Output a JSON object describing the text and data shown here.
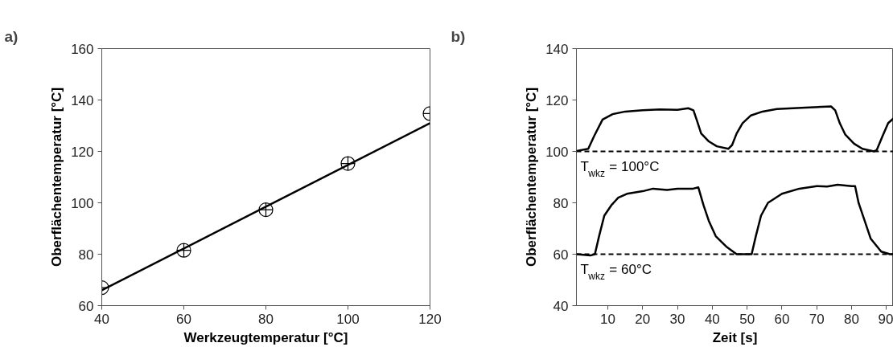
{
  "chart_data": [
    {
      "type": "scatter",
      "title": "a)",
      "xlabel": "Werkzeugtemperatur [°C]",
      "ylabel": "Oberflächentemperatur [°C]",
      "xlim": [
        40,
        120
      ],
      "xticks": [
        40,
        60,
        80,
        100,
        120
      ],
      "ylim": [
        60,
        160
      ],
      "yticks": [
        60,
        80,
        100,
        120,
        140,
        160
      ],
      "grid": false,
      "series": [
        {
          "type": "scatter",
          "marker": "circle",
          "color": "#000000",
          "x": [
            40,
            60,
            80,
            100,
            120
          ],
          "values": [
            67,
            81.5,
            97.3,
            115.3,
            134.7
          ]
        },
        {
          "type": "line",
          "marker": "none",
          "color": "#000000",
          "x": [
            40,
            120
          ],
          "values": [
            66,
            131
          ]
        }
      ]
    },
    {
      "type": "line",
      "title": "b)",
      "xlabel": "Zeit [s]",
      "ylabel": "Oberflächentemperatur [°C]",
      "xlim": [
        1,
        92
      ],
      "xticks": [
        10,
        20,
        30,
        40,
        50,
        60,
        70,
        80,
        90
      ],
      "ylim": [
        40,
        140
      ],
      "yticks": [
        40,
        60,
        80,
        100,
        120,
        140
      ],
      "grid": false,
      "line_style": "solid",
      "ref_lines": [
        {
          "axis": "y",
          "value": 100,
          "label": "T$_{wkz}$ = 100°C",
          "color": "#000000",
          "line_style": "dashed"
        },
        {
          "axis": "y",
          "value": 60,
          "label": "T$_{wkz}$ = 60°C",
          "color": "#000000",
          "line_style": "dashed"
        }
      ],
      "series": [
        {
          "color": "#000000",
          "x": [
            1.1,
            4.4,
            6.1,
            8.5,
            11.4,
            15,
            20,
            25,
            30,
            33.1,
            34.6,
            35.6,
            36.8,
            38.9,
            41.3,
            44.6,
            45.7,
            47,
            48.7,
            51.1,
            54.4,
            58.5,
            66.7,
            74.1,
            75.3,
            76.6,
            78.2,
            80.7,
            83.1,
            86.4,
            87.2,
            88.9,
            90.5,
            92
          ],
          "values": [
            100.2,
            101,
            106,
            112.4,
            114.5,
            115.5,
            116,
            116.3,
            116.2,
            116.8,
            116,
            112,
            107,
            104,
            102,
            101,
            102.5,
            107,
            111,
            114,
            115.5,
            116.5,
            117,
            117.5,
            116,
            111,
            106.5,
            103,
            101,
            100,
            100.5,
            106,
            111,
            112.8
          ]
        },
        {
          "color": "#000000",
          "x": [
            1,
            5,
            6.3,
            7.5,
            9,
            11,
            13,
            15.5,
            20,
            23,
            27,
            30,
            34.5,
            36,
            37.5,
            39,
            41,
            44,
            47,
            50,
            51.3,
            52.5,
            54,
            56,
            60,
            65,
            70,
            73,
            76,
            80,
            81,
            82,
            83.5,
            85.5,
            88.5,
            91,
            92
          ],
          "values": [
            60,
            59.5,
            60,
            67,
            75,
            79,
            82,
            83.5,
            84.5,
            85.5,
            85,
            85.5,
            85.5,
            86,
            79,
            73,
            67,
            63,
            60,
            60,
            60,
            67,
            75,
            80,
            83.5,
            85.5,
            86.5,
            86.3,
            87,
            86.5,
            86.5,
            80,
            74,
            66,
            61,
            60,
            60
          ]
        }
      ]
    }
  ]
}
